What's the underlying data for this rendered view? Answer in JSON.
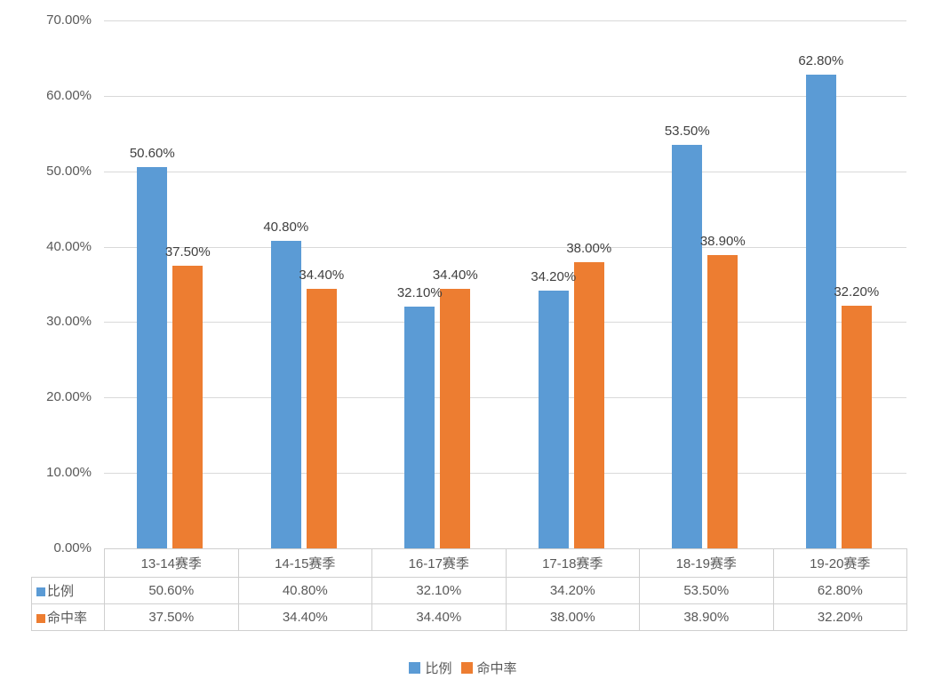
{
  "chart_data": {
    "type": "bar",
    "title": "",
    "categories": [
      "13-14赛季",
      "14-15赛季",
      "16-17赛季",
      "17-18赛季",
      "18-19赛季",
      "19-20赛季"
    ],
    "series": [
      {
        "name": "比例",
        "color": "#5B9BD5",
        "values": [
          50.6,
          40.8,
          32.1,
          34.2,
          53.5,
          62.8
        ],
        "labels": [
          "50.60%",
          "40.80%",
          "32.10%",
          "34.20%",
          "53.50%",
          "62.80%"
        ]
      },
      {
        "name": "命中率",
        "color": "#ED7D31",
        "values": [
          37.5,
          34.4,
          34.4,
          38.0,
          38.9,
          32.2
        ],
        "labels": [
          "37.50%",
          "34.40%",
          "34.40%",
          "38.00%",
          "38.90%",
          "32.20%"
        ]
      }
    ],
    "y_axis": {
      "min": 0,
      "max": 70,
      "step": 10,
      "tick_labels": [
        "0.00%",
        "10.00%",
        "20.00%",
        "30.00%",
        "40.00%",
        "50.00%",
        "60.00%",
        "70.00%"
      ]
    },
    "grid": true,
    "legend_position": "bottom",
    "data_table_shown": true
  },
  "legend": {
    "items": [
      {
        "label": "比例",
        "color": "#5B9BD5"
      },
      {
        "label": "命中率",
        "color": "#ED7D31"
      }
    ]
  },
  "colors": {
    "series_blue": "#5B9BD5",
    "series_orange": "#ED7D31",
    "gridline": "#D9D9D9",
    "table_border": "#CFCFCF",
    "axis_text": "#595959",
    "label_text": "#404040",
    "background": "#FFFFFF"
  }
}
